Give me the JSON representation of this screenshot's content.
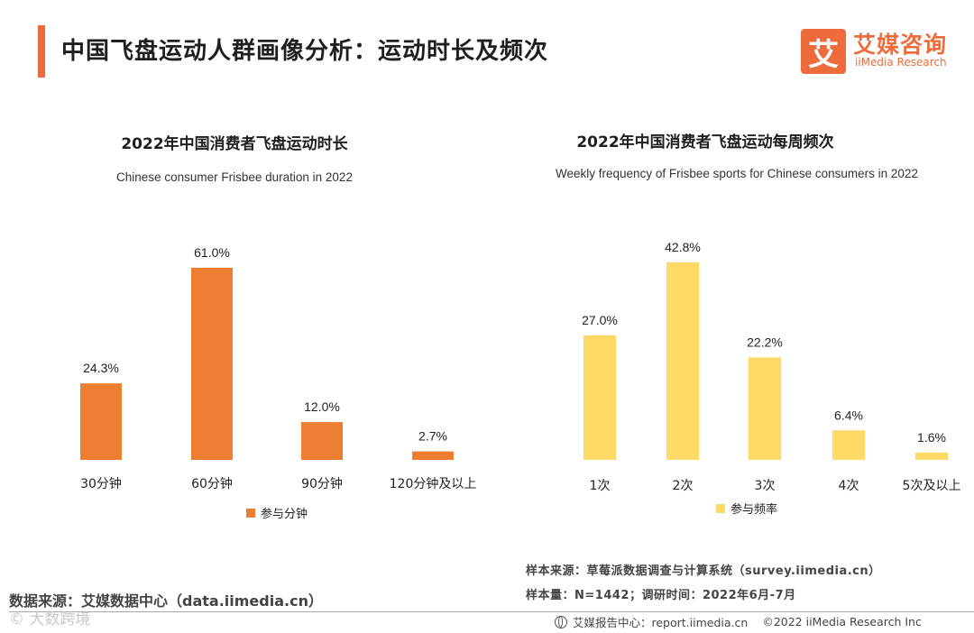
{
  "header": {
    "title": "中国飞盘运动人群画像分析：运动时长及频次",
    "logo_mark": "艾",
    "logo_cn": "艾媒咨询",
    "logo_en": "iiMedia Research"
  },
  "chart_data": [
    {
      "type": "bar",
      "title": "2022年中国消费者飞盘运动时长",
      "subtitle": "Chinese consumer Frisbee duration in 2022",
      "categories": [
        "30分钟",
        "60分钟",
        "90分钟",
        "120分钟及以上"
      ],
      "series": [
        {
          "name": "参与分钟",
          "values": [
            24.3,
            61.0,
            12.0,
            2.7
          ]
        }
      ],
      "value_labels": [
        "24.3%",
        "61.0%",
        "12.0%",
        "2.7%"
      ],
      "unit": "%",
      "ylim": [
        0,
        61.0
      ],
      "color": "#ed7d31",
      "legend": "bottom-center",
      "grid": false
    },
    {
      "type": "bar",
      "title": "2022年中国消费者飞盘运动每周频次",
      "subtitle": "Weekly frequency of Frisbee sports for Chinese consumers in 2022",
      "categories": [
        "1次",
        "2次",
        "3次",
        "4次",
        "5次及以上"
      ],
      "series": [
        {
          "name": "参与频率",
          "values": [
            27.0,
            42.8,
            22.2,
            6.4,
            1.6
          ]
        }
      ],
      "value_labels": [
        "27.0%",
        "42.8%",
        "22.2%",
        "6.4%",
        "1.6%"
      ],
      "unit": "%",
      "ylim": [
        0,
        42.8
      ],
      "color": "#ffd966",
      "legend": "bottom-center",
      "grid": false
    }
  ],
  "footer": {
    "sample_source": "样本来源：草莓派数据调查与计算系统（survey.iimedia.cn）",
    "sample_size": "样本量：N=1442；调研时间：2022年6月-7月",
    "data_source": "数据来源：艾媒数据中心（data.iimedia.cn）",
    "watermark": "© 大数跨境",
    "report_center": "艾媒报告中心：report.iimedia.cn",
    "copyright": "©2022 iiMedia Research Inc"
  }
}
